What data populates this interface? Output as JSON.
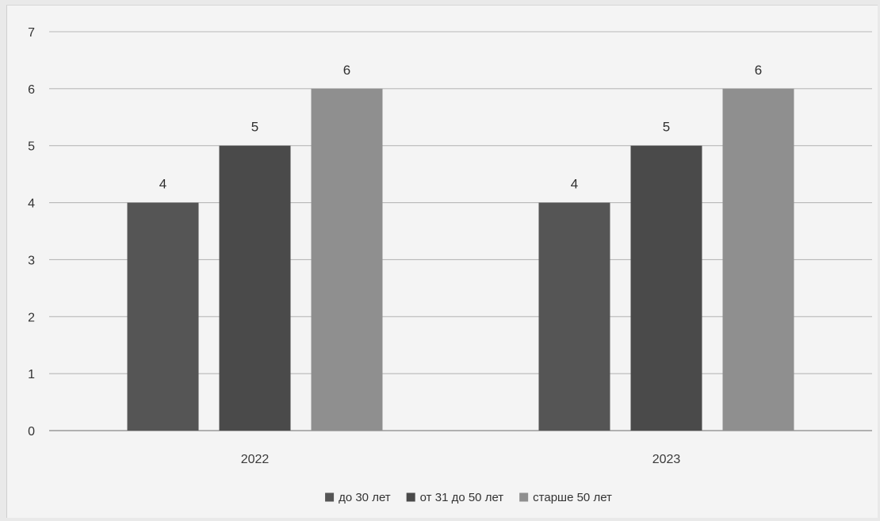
{
  "chart_data": {
    "type": "bar",
    "title": "",
    "xlabel": "",
    "ylabel": "",
    "ylim": [
      0,
      7
    ],
    "yticks": [
      0,
      1,
      2,
      3,
      4,
      5,
      6,
      7
    ],
    "grid": true,
    "legend_position": "bottom",
    "data_labels": true,
    "categories": [
      "2022",
      "2023"
    ],
    "series": [
      {
        "name": "до 30 лет",
        "values": [
          4,
          4
        ],
        "color": "#555555"
      },
      {
        "name": "от 31 до 50 лет",
        "values": [
          5,
          5
        ],
        "color": "#4a4a4a"
      },
      {
        "name": "старше 50 лет",
        "values": [
          6,
          6
        ],
        "color": "#8f8f8f"
      }
    ]
  }
}
